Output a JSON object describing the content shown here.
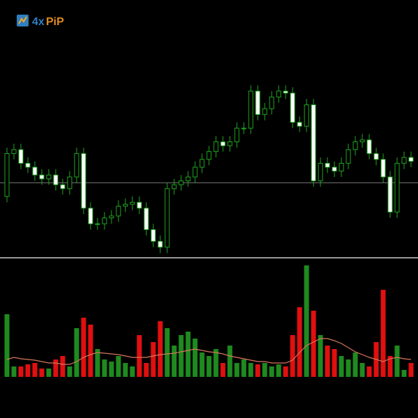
{
  "logo": {
    "prefix": "4x",
    "suffix": "PiP"
  },
  "chart_data": [
    {
      "type": "candlestick",
      "open": [
        35,
        57,
        59,
        52,
        50,
        46,
        44,
        46,
        41,
        39,
        45,
        57,
        29,
        21,
        21,
        24,
        25,
        30,
        31,
        32,
        29,
        18,
        12,
        9,
        39,
        41,
        43,
        45,
        50,
        54,
        58,
        63,
        61,
        63,
        70,
        70,
        89,
        77,
        80,
        86,
        89,
        88,
        73,
        71,
        82,
        43,
        52,
        50,
        48,
        52,
        59,
        63,
        64,
        57,
        54,
        45,
        27,
        52,
        55
      ],
      "high": [
        60,
        62,
        62,
        55,
        53,
        49,
        49,
        49,
        44,
        48,
        60,
        60,
        32,
        24,
        27,
        28,
        33,
        34,
        35,
        35,
        32,
        21,
        15,
        42,
        44,
        46,
        48,
        53,
        57,
        61,
        66,
        66,
        66,
        73,
        73,
        92,
        92,
        83,
        89,
        92,
        92,
        91,
        76,
        85,
        85,
        55,
        55,
        53,
        55,
        62,
        66,
        67,
        67,
        60,
        57,
        48,
        55,
        58,
        58
      ],
      "low": [
        32,
        54,
        49,
        47,
        43,
        41,
        41,
        38,
        36,
        36,
        42,
        26,
        18,
        18,
        18,
        21,
        22,
        27,
        28,
        26,
        15,
        9,
        6,
        6,
        36,
        38,
        40,
        42,
        47,
        51,
        55,
        58,
        58,
        60,
        67,
        67,
        74,
        74,
        77,
        83,
        85,
        70,
        68,
        68,
        40,
        40,
        47,
        45,
        45,
        49,
        56,
        60,
        54,
        51,
        42,
        24,
        24,
        49,
        50
      ],
      "close": [
        57,
        59,
        52,
        50,
        46,
        44,
        46,
        41,
        39,
        45,
        57,
        29,
        21,
        21,
        24,
        25,
        30,
        31,
        32,
        29,
        18,
        12,
        9,
        39,
        41,
        43,
        45,
        50,
        54,
        58,
        63,
        61,
        63,
        70,
        70,
        89,
        77,
        80,
        86,
        89,
        88,
        73,
        71,
        82,
        43,
        52,
        50,
        48,
        52,
        59,
        63,
        64,
        57,
        54,
        45,
        27,
        52,
        55,
        53
      ],
      "ylim": [
        0,
        100
      ],
      "level": 42,
      "color": "#1fa81f",
      "up_fill": "#000000",
      "down_fill": "#ffffff"
    },
    {
      "type": "volume",
      "values": [
        90,
        15,
        15,
        18,
        20,
        12,
        12,
        25,
        30,
        15,
        70,
        85,
        75,
        40,
        25,
        22,
        30,
        20,
        15,
        60,
        20,
        50,
        80,
        70,
        45,
        60,
        65,
        55,
        35,
        30,
        40,
        20,
        45,
        20,
        25,
        20,
        18,
        20,
        15,
        18,
        15,
        60,
        100,
        160,
        95,
        60,
        45,
        40,
        30,
        25,
        35,
        20,
        15,
        50,
        125,
        30,
        45,
        10,
        20
      ],
      "ma": [
        25,
        28,
        26,
        25,
        24,
        22,
        20,
        20,
        18,
        18,
        22,
        28,
        32,
        35,
        34,
        33,
        32,
        30,
        28,
        28,
        28,
        30,
        32,
        33,
        34,
        36,
        38,
        40,
        38,
        36,
        35,
        33,
        30,
        28,
        26,
        24,
        22,
        22,
        20,
        20,
        20,
        24,
        35,
        45,
        50,
        55,
        55,
        52,
        48,
        42,
        36,
        32,
        28,
        25,
        22,
        26,
        28,
        26,
        25
      ],
      "ylim": [
        0,
        170
      ],
      "up_color": "#1f8a1f",
      "down_color": "#e01010",
      "ma_color": "#d9775a"
    }
  ]
}
